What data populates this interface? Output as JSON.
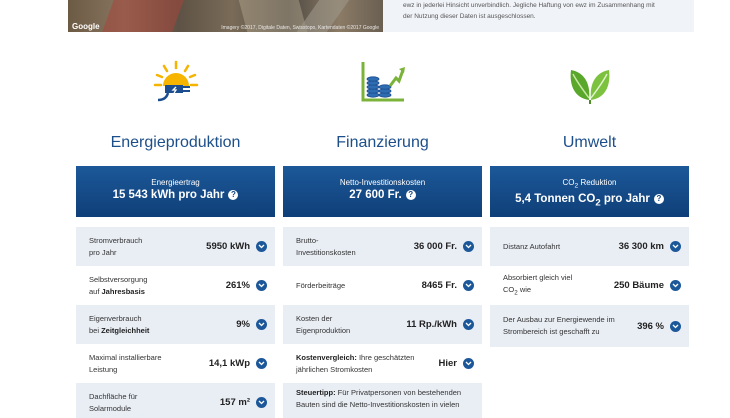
{
  "map": {
    "provider": "Google",
    "credit": "Imagery ©2017, Digitale Daten, Swisstopo, Kartendaten ©2017 Google"
  },
  "disclaimer": {
    "line1": "ewz in jederlei Hinsicht unverbindlich. Jegliche Haftung von ewz im Zusammenhang mit",
    "line2": "der Nutzung dieser Daten ist ausgeschlossen."
  },
  "energy": {
    "title": "Energieproduktion",
    "banner_label": "Energieertrag",
    "banner_value": "15 543 kWh pro Jahr",
    "rows": [
      {
        "label": "Stromverbrauch",
        "label2": "pro Jahr",
        "value": "5950 kWh"
      },
      {
        "label": "Selbstversorgung",
        "label2_pre": "auf ",
        "label2_bold": "Jahresbasis",
        "value": "261%"
      },
      {
        "label": "Eigenverbrauch",
        "label2_pre": "bei ",
        "label2_bold": "Zeitgleichheit",
        "value": "9%"
      },
      {
        "label": "Maximal installierbare",
        "label2": "Leistung",
        "value": "14,1 kWp"
      },
      {
        "label": "Dachfläche für",
        "label2": "Solarmodule",
        "value": "157 m²"
      }
    ]
  },
  "finance": {
    "title": "Finanzierung",
    "banner_label": "Netto-Investitionskosten",
    "banner_value": "27 600 Fr.",
    "rows": [
      {
        "label": "Brutto-",
        "label2": "Investitionskosten",
        "value": "36 000 Fr."
      },
      {
        "label": "Förderbeiträge",
        "value": "8465 Fr."
      },
      {
        "label": "Kosten der",
        "label2": "Eigenproduktion",
        "value": "11 Rp./kWh"
      },
      {
        "label_bold": "Kostenvergleich:",
        "label": " Ihre geschätzten",
        "label2": "jährlichen Stromkosten",
        "value": "Hier"
      },
      {
        "label_bold": "Steuertipp:",
        "label": " Für Privatpersonen von bestehenden",
        "label2": "Bauten sind die Netto-Investitionskosten in vielen"
      }
    ]
  },
  "environment": {
    "title": "Umwelt",
    "banner_label_pre": "CO",
    "banner_label_sub": "2",
    "banner_label_post": " Reduktion",
    "banner_value_pre": "5,4 Tonnen CO",
    "banner_value_sub": "2",
    "banner_value_post": " pro Jahr",
    "rows": [
      {
        "label": "Distanz Autofahrt",
        "value": "36 300 km"
      },
      {
        "label": "Absorbiert gleich viel",
        "label2_pre": "CO",
        "label2_sub": "2",
        "label2_post": " wie",
        "value": "250 Bäume"
      },
      {
        "label": "Der Ausbau zur Energiewende im",
        "label2": "Strombereich ist geschafft zu",
        "value": "396 %"
      }
    ]
  },
  "colors": {
    "brand_blue": "#1c5899",
    "row_shade": "#e9eef5",
    "title_blue": "#1d4f8a"
  },
  "icons": {
    "energy": "solar-plug-icon",
    "finance": "coins-chart-icon",
    "environment": "leaves-icon",
    "info": "question-icon",
    "expand": "chevron-down-icon"
  }
}
